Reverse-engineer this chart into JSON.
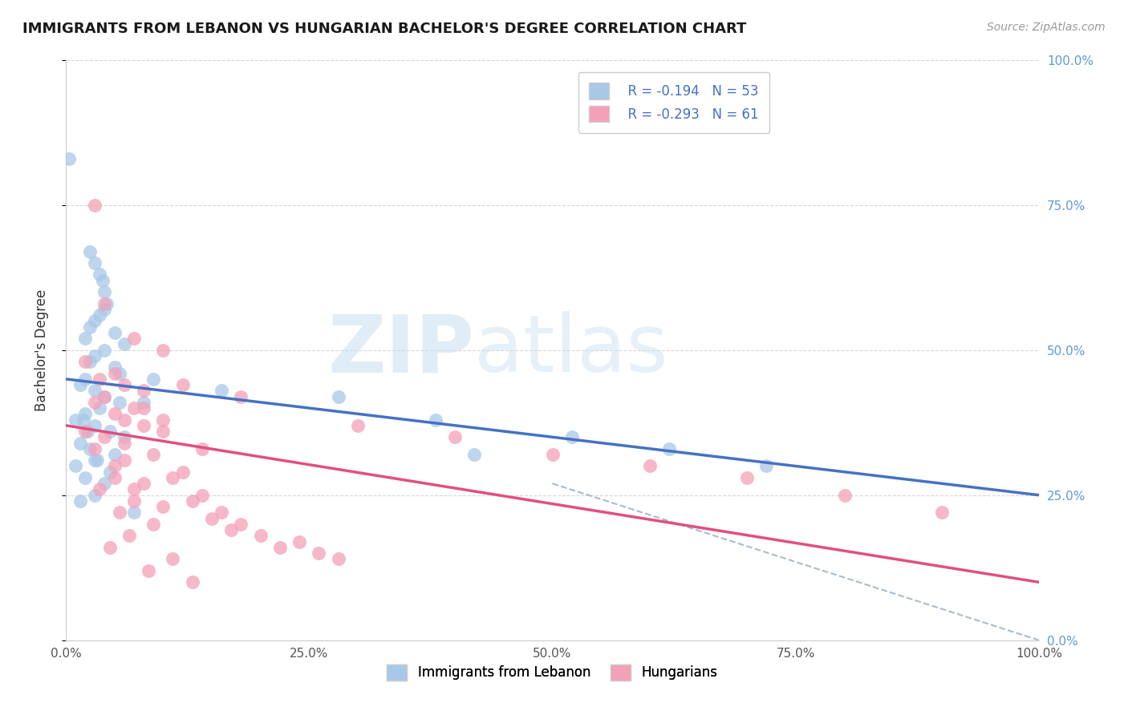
{
  "title": "IMMIGRANTS FROM LEBANON VS HUNGARIAN BACHELOR'S DEGREE CORRELATION CHART",
  "source": "Source: ZipAtlas.com",
  "ylabel": "Bachelor's Degree",
  "legend_entries": [
    {
      "label": "Immigrants from Lebanon",
      "R": -0.194,
      "N": 53,
      "color": "#a8c8e8"
    },
    {
      "label": "Hungarians",
      "R": -0.293,
      "N": 61,
      "color": "#f4a0b8"
    }
  ],
  "blue_scatter_x": [
    0.3,
    2.5,
    3.0,
    3.5,
    3.8,
    4.0,
    4.2,
    4.0,
    3.5,
    3.0,
    2.5,
    5.0,
    2.0,
    6.0,
    4.0,
    3.0,
    2.5,
    5.0,
    5.5,
    2.0,
    1.5,
    3.0,
    4.0,
    5.5,
    3.5,
    2.0,
    1.0,
    3.0,
    4.5,
    6.0,
    1.5,
    2.5,
    5.0,
    3.0,
    1.0,
    2.0,
    4.0,
    3.0,
    1.5,
    7.0,
    9.0,
    16.0,
    28.0,
    38.0,
    52.0,
    62.0,
    72.0,
    42.0,
    8.0,
    1.8,
    2.2,
    4.5,
    3.2
  ],
  "blue_scatter_y": [
    83,
    67,
    65,
    63,
    62,
    60,
    58,
    57,
    56,
    55,
    54,
    53,
    52,
    51,
    50,
    49,
    48,
    47,
    46,
    45,
    44,
    43,
    42,
    41,
    40,
    39,
    38,
    37,
    36,
    35,
    34,
    33,
    32,
    31,
    30,
    28,
    27,
    25,
    24,
    22,
    45,
    43,
    42,
    38,
    35,
    33,
    30,
    32,
    41,
    38,
    36,
    29,
    31
  ],
  "pink_scatter_x": [
    3.0,
    4.0,
    7.0,
    10.0,
    2.0,
    5.0,
    3.5,
    6.0,
    8.0,
    4.0,
    3.0,
    7.0,
    5.0,
    10.0,
    8.0,
    2.0,
    4.0,
    6.0,
    3.0,
    9.0,
    6.0,
    5.0,
    12.0,
    11.0,
    8.0,
    7.0,
    14.0,
    13.0,
    10.0,
    16.0,
    15.0,
    18.0,
    17.0,
    20.0,
    24.0,
    22.0,
    26.0,
    28.0,
    30.0,
    40.0,
    50.0,
    60.0,
    70.0,
    80.0,
    90.0,
    18.0,
    12.0,
    8.0,
    6.0,
    10.0,
    14.0,
    5.0,
    3.5,
    7.0,
    5.5,
    9.0,
    6.5,
    4.5,
    11.0,
    8.5,
    13.0
  ],
  "pink_scatter_y": [
    75,
    58,
    52,
    50,
    48,
    46,
    45,
    44,
    43,
    42,
    41,
    40,
    39,
    38,
    37,
    36,
    35,
    34,
    33,
    32,
    31,
    30,
    29,
    28,
    27,
    26,
    25,
    24,
    23,
    22,
    21,
    20,
    19,
    18,
    17,
    16,
    15,
    14,
    37,
    35,
    32,
    30,
    28,
    25,
    22,
    42,
    44,
    40,
    38,
    36,
    33,
    28,
    26,
    24,
    22,
    20,
    18,
    16,
    14,
    12,
    10
  ],
  "blue_line": {
    "x0": 0,
    "y0": 45,
    "x1": 100,
    "y1": 25
  },
  "pink_line": {
    "x0": 0,
    "y0": 37,
    "x1": 100,
    "y1": 10
  },
  "dash_line": {
    "x0": 50,
    "y0": 27,
    "x1": 100,
    "y1": 0
  },
  "xlim": [
    0,
    100
  ],
  "ylim": [
    0,
    100
  ],
  "xticks": [
    0,
    25,
    50,
    75,
    100
  ],
  "xtick_labels": [
    "0.0%",
    "25.0%",
    "50.0%",
    "75.0%",
    "100.0%"
  ],
  "ytick_labels_right": [
    "0.0%",
    "25.0%",
    "50.0%",
    "75.0%",
    "100.0%"
  ],
  "grid_color": "#cccccc",
  "blue_line_color": "#4472c4",
  "pink_line_color": "#e05080",
  "blue_scatter_color": "#a8c8e8",
  "pink_scatter_color": "#f4a0b8",
  "dash_line_color": "#aabbcc"
}
